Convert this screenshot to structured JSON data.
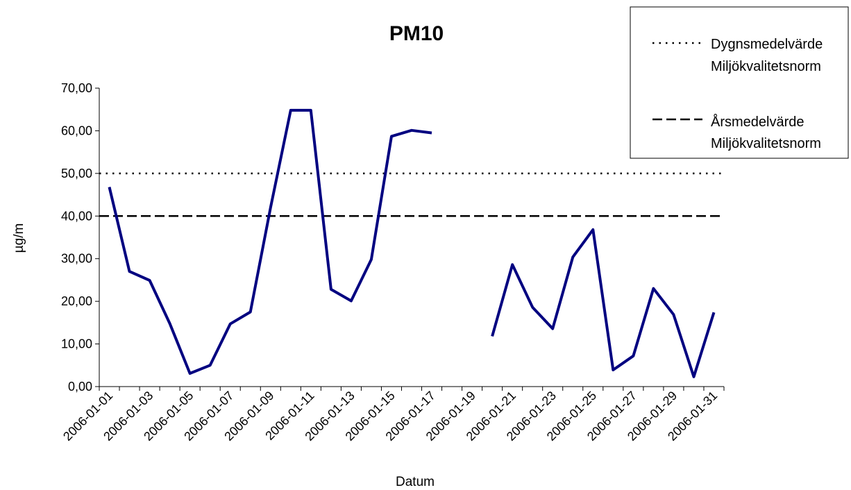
{
  "chart_data": {
    "type": "line",
    "title": "PM10",
    "xlabel": "Datum",
    "ylabel": "µg/m",
    "ylim": [
      0,
      70
    ],
    "y_ticks": [
      "0,00",
      "10,00",
      "20,00",
      "30,00",
      "40,00",
      "50,00",
      "60,00",
      "70,00"
    ],
    "x_tick_labels": [
      "2006-01-01",
      "2006-01-03",
      "2006-01-05",
      "2006-01-07",
      "2006-01-09",
      "2006-01-11",
      "2006-01-13",
      "2006-01-15",
      "2006-01-17",
      "2006-01-19",
      "2006-01-21",
      "2006-01-23",
      "2006-01-25",
      "2006-01-27",
      "2006-01-29",
      "2006-01-31"
    ],
    "categories": [
      "2006-01-01",
      "2006-01-02",
      "2006-01-03",
      "2006-01-04",
      "2006-01-05",
      "2006-01-06",
      "2006-01-07",
      "2006-01-08",
      "2006-01-09",
      "2006-01-10",
      "2006-01-11",
      "2006-01-12",
      "2006-01-13",
      "2006-01-14",
      "2006-01-15",
      "2006-01-16",
      "2006-01-17",
      "2006-01-18",
      "2006-01-19",
      "2006-01-20",
      "2006-01-21",
      "2006-01-22",
      "2006-01-23",
      "2006-01-24",
      "2006-01-25",
      "2006-01-26",
      "2006-01-27",
      "2006-01-28",
      "2006-01-29",
      "2006-01-30",
      "2006-01-31"
    ],
    "series": [
      {
        "values": [
          46.8,
          27.0,
          24.9,
          14.8,
          3.1,
          5.0,
          14.7,
          17.5,
          42.0,
          64.8,
          64.8,
          22.8,
          20.1,
          29.8,
          58.7,
          60.1,
          59.5,
          null,
          null,
          11.8,
          28.6,
          18.6,
          13.6,
          30.4,
          36.8,
          3.9,
          7.2,
          23.0,
          16.9,
          2.3,
          17.4
        ],
        "color": "#000080",
        "style": "solid"
      }
    ],
    "reference_lines": [
      {
        "name": "Dygnsmedelvärde Miljökvalitetsnorm",
        "value": 50,
        "style": "dotted",
        "color": "#000000"
      },
      {
        "name": "Årsmedelvärde Miljökvalitetsnorm",
        "value": 40,
        "style": "dashed",
        "color": "#000000"
      }
    ],
    "legend": {
      "position": "top-right",
      "entries": [
        {
          "line1": "Dygnsmedelvärde",
          "line2": "Miljökvalitetsnorm",
          "style": "dotted"
        },
        {
          "line1": "Årsmedelvärde",
          "line2": "Miljökvalitetsnorm",
          "style": "dashed"
        }
      ]
    },
    "grid": false
  }
}
